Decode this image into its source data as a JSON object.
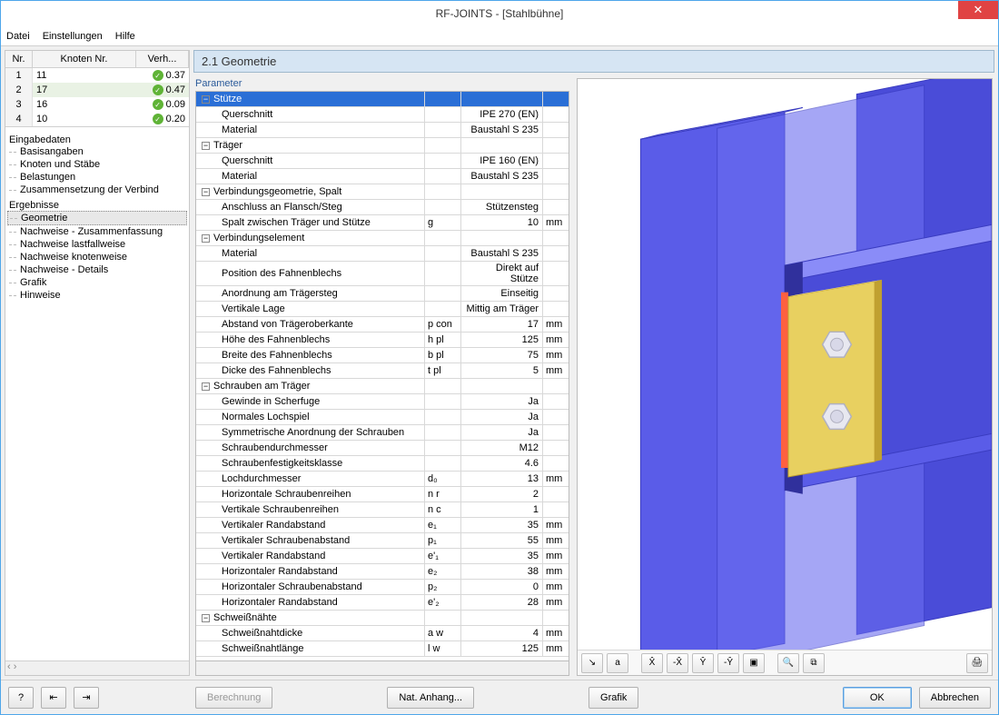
{
  "window": {
    "title": "RF-JOINTS - [Stahlbühne]"
  },
  "menu": {
    "file": "Datei",
    "settings": "Einstellungen",
    "help": "Hilfe"
  },
  "nodes": {
    "headers": {
      "nr": "Nr.",
      "knoten": "Knoten Nr.",
      "verh": "Verh..."
    },
    "rows": [
      {
        "nr": "1",
        "knoten": "11",
        "verh": "0.37"
      },
      {
        "nr": "2",
        "knoten": "17",
        "verh": "0.47"
      },
      {
        "nr": "3",
        "knoten": "16",
        "verh": "0.09"
      },
      {
        "nr": "4",
        "knoten": "10",
        "verh": "0.20"
      }
    ],
    "selected": 1
  },
  "tree": {
    "sections": [
      {
        "label": "Eingabedaten",
        "items": [
          "Basisangaben",
          "Knoten und Stäbe",
          "Belastungen",
          "Zusammensetzung der Verbind"
        ]
      },
      {
        "label": "Ergebnisse",
        "items": [
          "Geometrie",
          "Nachweise - Zusammenfassung",
          "Nachweise lastfallweise",
          "Nachweise knotenweise",
          "Nachweise - Details",
          "Grafik",
          "Hinweise"
        ]
      }
    ],
    "selected": "Geometrie"
  },
  "main": {
    "title": "2.1 Geometrie",
    "param_label": "Parameter",
    "rows": [
      {
        "type": "group",
        "label": "Stütze",
        "selected": true
      },
      {
        "type": "item",
        "label": "Querschnitt",
        "value": "IPE 270 (EN)"
      },
      {
        "type": "item",
        "label": "Material",
        "value": "Baustahl S 235"
      },
      {
        "type": "group",
        "label": "Träger"
      },
      {
        "type": "item",
        "label": "Querschnitt",
        "value": "IPE 160 (EN)"
      },
      {
        "type": "item",
        "label": "Material",
        "value": "Baustahl S 235"
      },
      {
        "type": "group",
        "label": "Verbindungsgeometrie, Spalt"
      },
      {
        "type": "item",
        "label": "Anschluss an Flansch/Steg",
        "value": "Stützensteg"
      },
      {
        "type": "item",
        "label": "Spalt zwischen Träger und Stütze",
        "sym": "g",
        "value": "10",
        "unit": "mm"
      },
      {
        "type": "group",
        "label": "Verbindungselement"
      },
      {
        "type": "item",
        "label": "Material",
        "value": "Baustahl S 235"
      },
      {
        "type": "item",
        "label": "Position des Fahnenblechs",
        "value": "Direkt auf Stütze"
      },
      {
        "type": "item",
        "label": "Anordnung am Trägersteg",
        "value": "Einseitig"
      },
      {
        "type": "item",
        "label": "Vertikale Lage",
        "value": "Mittig am Träger"
      },
      {
        "type": "item",
        "label": "Abstand von Trägeroberkante",
        "sym": "p con",
        "value": "17",
        "unit": "mm"
      },
      {
        "type": "item",
        "label": "Höhe des Fahnenblechs",
        "sym": "h pl",
        "value": "125",
        "unit": "mm"
      },
      {
        "type": "item",
        "label": "Breite des Fahnenblechs",
        "sym": "b pl",
        "value": "75",
        "unit": "mm"
      },
      {
        "type": "item",
        "label": "Dicke des Fahnenblechs",
        "sym": "t pl",
        "value": "5",
        "unit": "mm"
      },
      {
        "type": "group",
        "label": "Schrauben am Träger"
      },
      {
        "type": "item",
        "label": "Gewinde in Scherfuge",
        "value": "Ja"
      },
      {
        "type": "item",
        "label": "Normales Lochspiel",
        "value": "Ja"
      },
      {
        "type": "item",
        "label": "Symmetrische Anordnung der Schrauben",
        "value": "Ja"
      },
      {
        "type": "item",
        "label": "Schraubendurchmesser",
        "value": "M12"
      },
      {
        "type": "item",
        "label": "Schraubenfestigkeitsklasse",
        "value": "4.6"
      },
      {
        "type": "item",
        "label": "Lochdurchmesser",
        "sym": "d₀",
        "value": "13",
        "unit": "mm"
      },
      {
        "type": "item",
        "label": "Horizontale Schraubenreihen",
        "sym": "n r",
        "value": "2"
      },
      {
        "type": "item",
        "label": "Vertikale Schraubenreihen",
        "sym": "n c",
        "value": "1"
      },
      {
        "type": "item",
        "label": "Vertikaler Randabstand",
        "sym": "e₁",
        "value": "35",
        "unit": "mm"
      },
      {
        "type": "item",
        "label": "Vertikaler Schraubenabstand",
        "sym": "p₁",
        "value": "55",
        "unit": "mm"
      },
      {
        "type": "item",
        "label": "Vertikaler Randabstand",
        "sym": "e'₁",
        "value": "35",
        "unit": "mm"
      },
      {
        "type": "item",
        "label": "Horizontaler Randabstand",
        "sym": "e₂",
        "value": "38",
        "unit": "mm"
      },
      {
        "type": "item",
        "label": "Horizontaler Schraubenabstand",
        "sym": "p₂",
        "value": "0",
        "unit": "mm"
      },
      {
        "type": "item",
        "label": "Horizontaler Randabstand",
        "sym": "e'₂",
        "value": "28",
        "unit": "mm"
      },
      {
        "type": "group",
        "label": "Schweißnähte"
      },
      {
        "type": "item",
        "label": "Schweißnahtdicke",
        "sym": "a w",
        "value": "4",
        "unit": "mm"
      },
      {
        "type": "item",
        "label": "Schweißnahtlänge",
        "sym": "l w",
        "value": "125",
        "unit": "mm"
      }
    ]
  },
  "viewer_toolbar": {
    "buttons": [
      "↘",
      "a",
      "X̂",
      "-X̂",
      "Ŷ",
      "-Ŷ",
      "▣",
      "🔍",
      "⧉"
    ],
    "print": "🖨"
  },
  "footer": {
    "help": "?",
    "prev": "⇤",
    "next": "⇥",
    "calc": "Berechnung",
    "nat": "Nat. Anhang...",
    "grafik": "Grafik",
    "ok": "OK",
    "cancel": "Abbrechen"
  },
  "colors": {
    "column": "#5a5ce8",
    "column_dark": "#3a3cc0",
    "column_light": "#8a8cf8",
    "beam": "#4a4cd8",
    "beam_dark": "#30309c",
    "plate": "#e8d060",
    "plate_dark": "#c0a030",
    "weld": "#ff6040",
    "bolt": "#e8e8f0",
    "bolt_edge": "#b0b0c0"
  }
}
